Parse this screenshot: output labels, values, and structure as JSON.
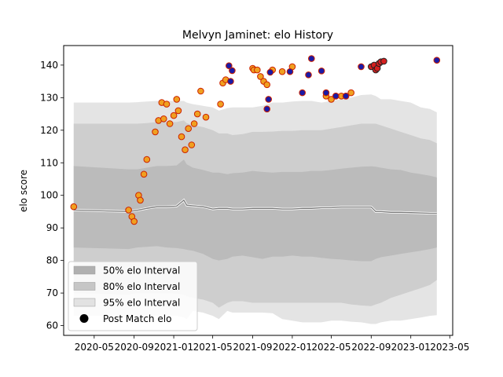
{
  "chart_data": {
    "type": "scatter",
    "title": "Melvyn Jaminet: elo History",
    "xlabel": "",
    "ylabel": "elo score",
    "x_ticks": [
      "2020-05",
      "2020-09",
      "2021-01",
      "2021-05",
      "2021-09",
      "2022-01",
      "2022-05",
      "2022-09",
      "2023-01",
      "2023-05"
    ],
    "xlim": [
      "2020-01-28",
      "2023-05-10"
    ],
    "ylim": [
      57,
      146
    ],
    "y_ticks": [
      60,
      70,
      80,
      90,
      100,
      110,
      120,
      130,
      140
    ],
    "grid": false,
    "legend": {
      "placement": "lower-left",
      "entries": [
        {
          "label": "50% elo Interval",
          "color": "#b0b0b0"
        },
        {
          "label": "80% elo Interval",
          "color": "#c8c8c8"
        },
        {
          "label": "95% elo Interval",
          "color": "#e4e4e4"
        },
        {
          "label": "Post Match elo",
          "color": "#000000"
        }
      ]
    },
    "band_x": [
      "2020-02-28",
      "2020-08-15",
      "2020-09-10",
      "2020-10-10",
      "2020-11-10",
      "2020-12-10",
      "2021-01-10",
      "2021-02-01",
      "2021-02-10",
      "2021-03-01",
      "2021-04-01",
      "2021-05-01",
      "2021-05-20",
      "2021-06-15",
      "2021-07-01",
      "2021-08-01",
      "2021-09-01",
      "2021-10-01",
      "2021-11-01",
      "2021-12-01",
      "2022-01-01",
      "2022-02-01",
      "2022-03-01",
      "2022-04-01",
      "2022-05-01",
      "2022-06-01",
      "2022-07-01",
      "2022-08-01",
      "2022-09-01",
      "2022-09-15",
      "2022-10-01",
      "2022-11-01",
      "2022-12-01",
      "2023-01-01",
      "2023-02-01",
      "2023-03-01",
      "2023-03-22"
    ],
    "mean": [
      95.5,
      95.0,
      95.4,
      96.0,
      96.5,
      96.5,
      96.7,
      98.5,
      97.0,
      96.8,
      96.5,
      95.8,
      96.0,
      96.0,
      95.8,
      95.8,
      96.0,
      96.0,
      96.0,
      95.8,
      95.8,
      96.0,
      96.0,
      96.2,
      96.2,
      96.4,
      96.4,
      96.4,
      96.4,
      95.0,
      95.0,
      94.8,
      94.8,
      94.7,
      94.6,
      94.5,
      94.5
    ],
    "band50": {
      "upper": [
        109.0,
        108.0,
        108.0,
        108.5,
        109.0,
        109.0,
        109.2,
        111.0,
        109.5,
        108.5,
        107.8,
        107.0,
        107.0,
        106.5,
        106.8,
        107.0,
        107.5,
        107.2,
        107.0,
        107.2,
        107.2,
        107.2,
        107.5,
        107.5,
        107.8,
        108.2,
        108.5,
        108.8,
        108.9,
        108.8,
        108.5,
        108.0,
        107.8,
        107.0,
        106.5,
        106.0,
        105.5
      ],
      "lower": [
        84.0,
        83.5,
        84.0,
        84.2,
        84.4,
        84.0,
        83.8,
        83.5,
        83.3,
        83.0,
        82.0,
        80.5,
        80.0,
        80.5,
        81.2,
        81.5,
        81.0,
        80.5,
        81.2,
        81.2,
        81.5,
        81.2,
        81.2,
        80.8,
        80.5,
        80.3,
        80.0,
        79.8,
        79.8,
        80.5,
        81.0,
        81.5,
        82.0,
        82.5,
        83.0,
        83.5,
        84.0
      ]
    },
    "band80": {
      "upper": [
        122.0,
        122.0,
        122.0,
        122.2,
        122.5,
        122.5,
        122.5,
        123.0,
        122.2,
        121.5,
        121.0,
        120.0,
        119.0,
        119.0,
        118.5,
        118.8,
        119.5,
        119.5,
        119.6,
        119.8,
        119.8,
        120.0,
        120.0,
        120.0,
        120.5,
        121.0,
        121.5,
        122.0,
        122.0,
        122.0,
        121.5,
        120.5,
        119.5,
        118.5,
        117.5,
        117.0,
        116.0
      ],
      "lower": [
        70.0,
        69.5,
        70.0,
        70.0,
        70.0,
        70.0,
        69.8,
        69.5,
        69.0,
        68.5,
        68.0,
        67.0,
        65.5,
        67.0,
        67.5,
        67.5,
        67.0,
        67.0,
        67.0,
        67.0,
        67.0,
        67.0,
        67.0,
        67.0,
        67.0,
        67.0,
        66.5,
        66.2,
        66.0,
        66.5,
        67.0,
        68.5,
        69.5,
        70.5,
        71.5,
        72.5,
        74.0
      ]
    },
    "band95": {
      "upper": [
        128.5,
        128.5,
        128.6,
        128.8,
        129.0,
        129.0,
        129.0,
        129.0,
        128.5,
        128.0,
        127.5,
        127.0,
        126.0,
        126.8,
        127.0,
        127.0,
        127.0,
        127.5,
        128.5,
        128.5,
        128.8,
        129.0,
        129.0,
        128.5,
        129.0,
        129.5,
        130.0,
        130.8,
        131.0,
        130.5,
        129.5,
        129.5,
        129.0,
        128.5,
        127.0,
        126.5,
        125.5
      ],
      "lower": [
        63.0,
        63.0,
        63.0,
        63.0,
        63.0,
        63.0,
        63.0,
        62.5,
        62.0,
        64.5,
        64.0,
        63.0,
        62.0,
        64.5,
        64.0,
        64.0,
        64.0,
        64.0,
        63.8,
        62.0,
        61.5,
        61.0,
        61.0,
        61.0,
        61.5,
        61.5,
        61.2,
        61.0,
        60.5,
        60.5,
        61.0,
        61.5,
        61.5,
        62.0,
        62.5,
        63.0,
        63.2
      ]
    },
    "series": [
      {
        "name": "Post Match elo",
        "x": [
          "2020-02-28",
          "2020-08-15",
          "2020-08-25",
          "2020-09-01",
          "2020-09-15",
          "2020-09-20",
          "2020-10-01",
          "2020-10-10",
          "2020-11-05",
          "2020-11-15",
          "2020-11-25",
          "2020-12-01",
          "2020-12-10",
          "2020-12-20",
          "2021-01-01",
          "2021-01-10",
          "2021-01-15",
          "2021-01-25",
          "2021-02-05",
          "2021-02-15",
          "2021-02-25",
          "2021-03-05",
          "2021-03-15",
          "2021-03-25",
          "2021-04-10",
          "2021-05-25",
          "2021-06-01",
          "2021-06-10",
          "2021-09-01",
          "2021-09-05",
          "2021-09-15",
          "2021-09-25",
          "2021-10-05",
          "2021-10-15",
          "2021-11-01",
          "2021-12-01",
          "2022-01-01",
          "2022-04-15",
          "2022-05-01",
          "2022-05-15",
          "2022-06-01",
          "2022-06-15",
          "2022-07-01"
        ],
        "y": [
          96.5,
          95.5,
          93.5,
          92.0,
          100.0,
          98.5,
          106.5,
          111.0,
          119.5,
          123.0,
          128.5,
          123.5,
          128.0,
          122.0,
          124.5,
          129.5,
          126.0,
          118.0,
          114.0,
          120.5,
          115.5,
          122.0,
          125.0,
          132.0,
          124.0,
          128.0,
          134.5,
          135.5,
          139.0,
          138.5,
          138.5,
          136.5,
          135.0,
          134.0,
          138.5,
          138.0,
          139.5,
          130.5,
          129.5,
          130.5,
          130.5,
          130.5,
          131.5
        ],
        "color": "#f0a020",
        "edge": "#cc2200"
      },
      {
        "name": "Post Match elo",
        "x": [
          "2021-06-20",
          "2021-06-25",
          "2021-06-30",
          "2021-10-15",
          "2021-10-20",
          "2021-10-25",
          "2021-12-25",
          "2022-02-01",
          "2022-02-20",
          "2022-03-01",
          "2022-04-01",
          "2022-04-15",
          "2022-05-15",
          "2022-06-15",
          "2022-08-01",
          "2023-03-22"
        ],
        "y": [
          139.8,
          135.0,
          138.3,
          126.5,
          129.5,
          137.8,
          138.0,
          131.5,
          137.0,
          142.0,
          138.2,
          131.5,
          130.5,
          130.5,
          139.5,
          141.5
        ],
        "color": "#1a1aa6",
        "edge": "#cc2200"
      },
      {
        "name": "Post Match elo",
        "x": [
          "2022-09-01",
          "2022-09-10",
          "2022-09-15",
          "2022-09-20",
          "2022-09-25",
          "2022-10-01",
          "2022-10-10"
        ],
        "y": [
          139.5,
          140.0,
          138.5,
          139.0,
          140.5,
          141.0,
          141.2
        ],
        "color": "#d62020",
        "edge": "#222222"
      }
    ]
  }
}
